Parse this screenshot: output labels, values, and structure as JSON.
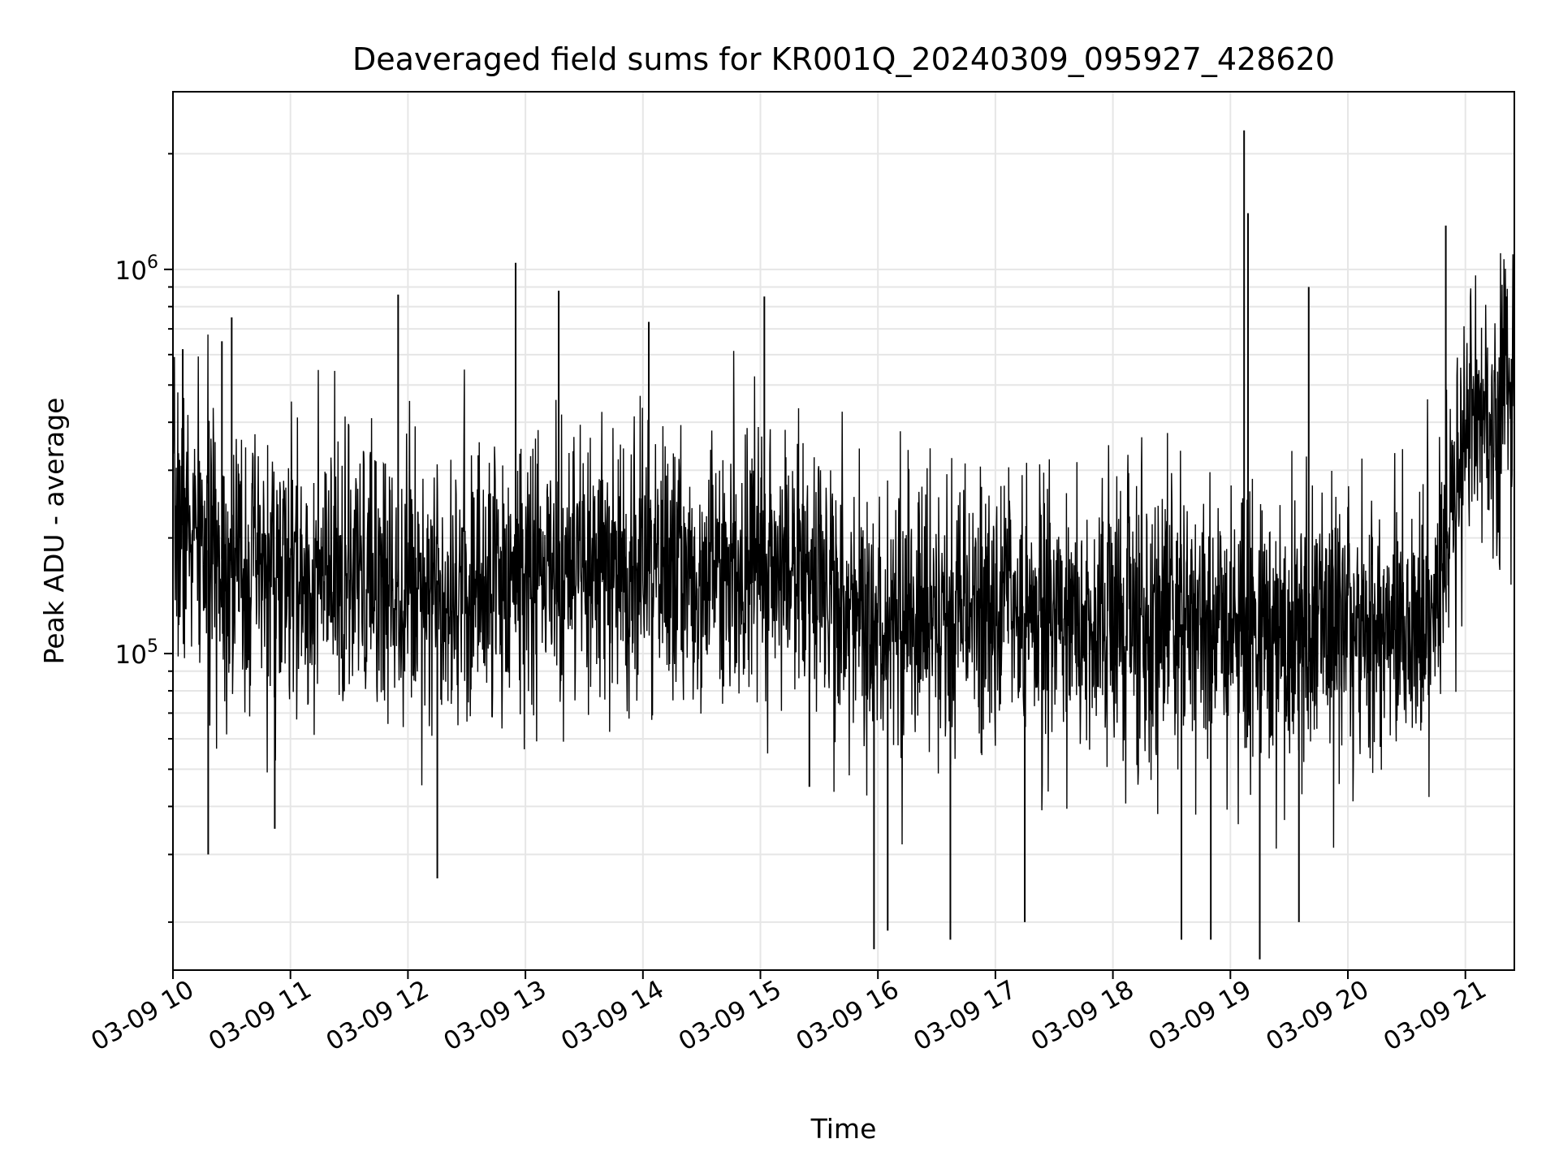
{
  "chart_data": {
    "type": "line",
    "title": "Deaveraged field sums for KR001Q_20240309_095927_428620",
    "xlabel": "Time",
    "ylabel": "Peak ADU - average",
    "yscale": "log",
    "ylim": [
      15000,
      2900000
    ],
    "xlim": [
      "2024-03-09 10:00",
      "2024-03-09 21:25"
    ],
    "grid": true,
    "line_color": "#000000",
    "grid_color": "#e6e6e6",
    "x_tick_labels": [
      "03-09 10",
      "03-09 11",
      "03-09 12",
      "03-09 13",
      "03-09 14",
      "03-09 15",
      "03-09 16",
      "03-09 17",
      "03-09 18",
      "03-09 19",
      "03-09 20",
      "03-09 21"
    ],
    "y_major_ticks": [
      {
        "value": 100000,
        "base": "10",
        "exp": "5"
      },
      {
        "value": 1000000,
        "base": "10",
        "exp": "6"
      }
    ],
    "series": [
      {
        "x": [
          "2024-03-09 10:00",
          "2024-03-09 10:15",
          "2024-03-09 10:30",
          "2024-03-09 10:45",
          "2024-03-09 11:00",
          "2024-03-09 11:30",
          "2024-03-09 12:00",
          "2024-03-09 12:30",
          "2024-03-09 13:00",
          "2024-03-09 13:30",
          "2024-03-09 14:00",
          "2024-03-09 14:30",
          "2024-03-09 15:00",
          "2024-03-09 15:30",
          "2024-03-09 16:00",
          "2024-03-09 16:30",
          "2024-03-09 17:00",
          "2024-03-09 17:30",
          "2024-03-09 18:00",
          "2024-03-09 18:30",
          "2024-03-09 19:00",
          "2024-03-09 19:30",
          "2024-03-09 20:00",
          "2024-03-09 20:30",
          "2024-03-09 20:45",
          "2024-03-09 21:00",
          "2024-03-09 21:25"
        ],
        "y": [
          230000,
          190000,
          170000,
          160000,
          155000,
          150000,
          160000,
          150000,
          165000,
          155000,
          170000,
          160000,
          185000,
          150000,
          120000,
          125000,
          130000,
          125000,
          120000,
          120000,
          115000,
          115000,
          115000,
          120000,
          135000,
          400000,
          480000
        ]
      }
    ],
    "spikes": [
      {
        "x": "2024-03-09 10:05",
        "y": 620000
      },
      {
        "x": "2024-03-09 10:18",
        "y": 30000
      },
      {
        "x": "2024-03-09 10:25",
        "y": 650000
      },
      {
        "x": "2024-03-09 10:30",
        "y": 750000
      },
      {
        "x": "2024-03-09 10:52",
        "y": 35000
      },
      {
        "x": "2024-03-09 11:55",
        "y": 860000
      },
      {
        "x": "2024-03-09 12:15",
        "y": 26000
      },
      {
        "x": "2024-03-09 12:55",
        "y": 1040000
      },
      {
        "x": "2024-03-09 13:17",
        "y": 880000
      },
      {
        "x": "2024-03-09 14:03",
        "y": 730000
      },
      {
        "x": "2024-03-09 15:02",
        "y": 850000
      },
      {
        "x": "2024-03-09 15:25",
        "y": 45000
      },
      {
        "x": "2024-03-09 15:58",
        "y": 17000
      },
      {
        "x": "2024-03-09 16:05",
        "y": 19000
      },
      {
        "x": "2024-03-09 16:37",
        "y": 18000
      },
      {
        "x": "2024-03-09 17:15",
        "y": 20000
      },
      {
        "x": "2024-03-09 18:35",
        "y": 18000
      },
      {
        "x": "2024-03-09 18:50",
        "y": 18000
      },
      {
        "x": "2024-03-09 19:07",
        "y": 2300000
      },
      {
        "x": "2024-03-09 19:09",
        "y": 1400000
      },
      {
        "x": "2024-03-09 19:15",
        "y": 16000
      },
      {
        "x": "2024-03-09 19:35",
        "y": 20000
      },
      {
        "x": "2024-03-09 19:40",
        "y": 900000
      },
      {
        "x": "2024-03-09 20:50",
        "y": 1300000
      },
      {
        "x": "2024-03-09 21:25",
        "y": 1050000
      }
    ]
  }
}
